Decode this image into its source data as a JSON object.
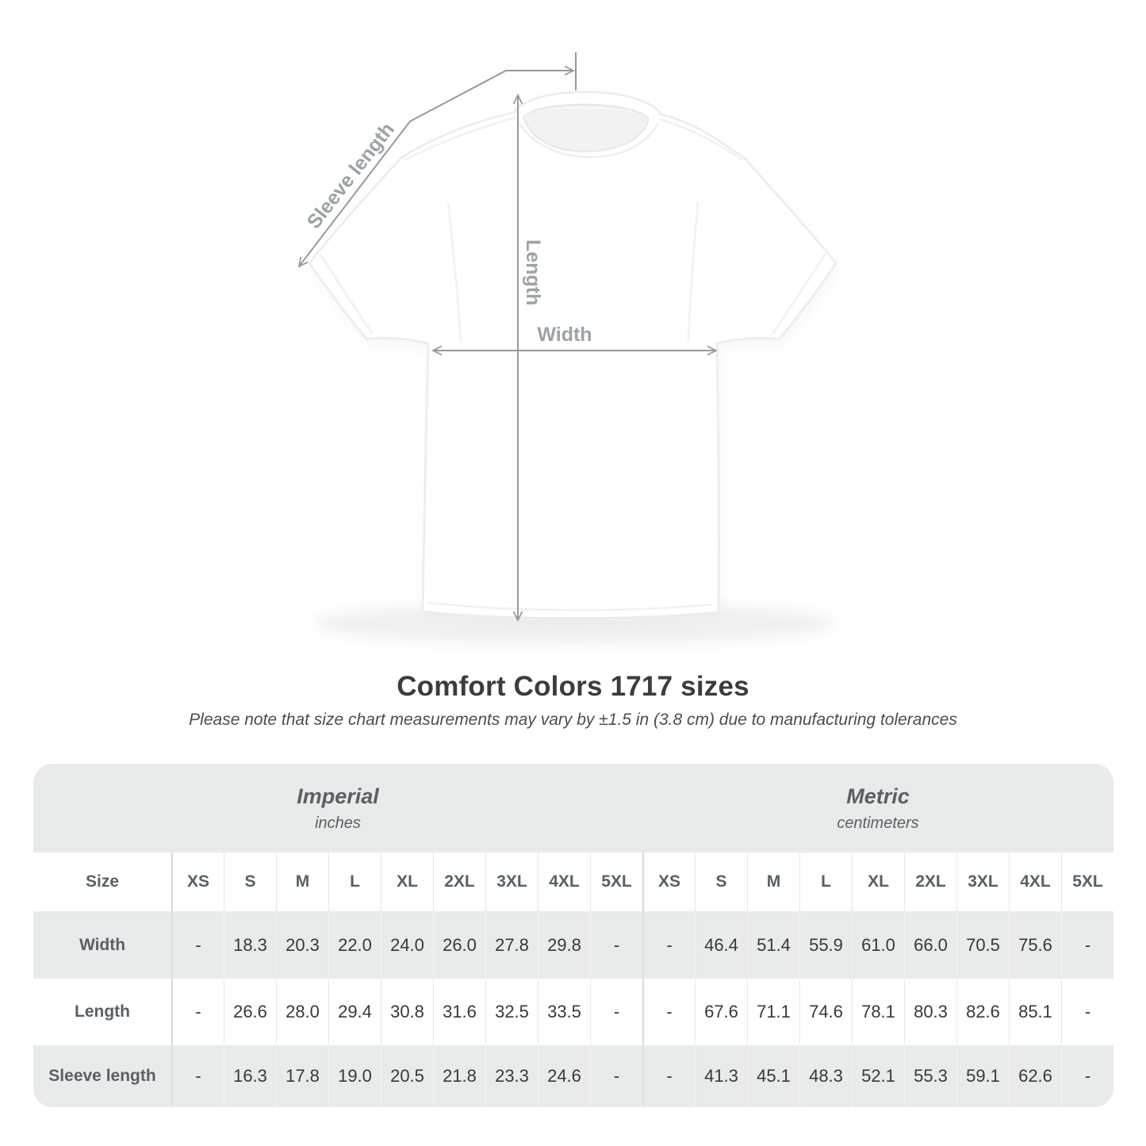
{
  "header": {
    "title": "Comfort Colors 1717 sizes",
    "subtitle": "Please note that size chart measurements may vary by ±1.5 in (3.8 cm) due to manufacturing tolerances"
  },
  "diagram": {
    "sleeve_label": "Sleeve length",
    "length_label": "Length",
    "width_label": "Width"
  },
  "chart_data": {
    "type": "table",
    "title": "Comfort Colors 1717 sizes",
    "size_column_header": "Size",
    "sections": [
      {
        "name": "Imperial",
        "unit": "inches",
        "columns": [
          "XS",
          "S",
          "M",
          "L",
          "XL",
          "2XL",
          "3XL",
          "4XL",
          "5XL"
        ]
      },
      {
        "name": "Metric",
        "unit": "centimeters",
        "columns": [
          "XS",
          "S",
          "M",
          "L",
          "XL",
          "2XL",
          "3XL",
          "4XL",
          "5XL"
        ]
      }
    ],
    "rows": [
      {
        "label": "Width",
        "imperial": [
          "-",
          "18.3",
          "20.3",
          "22.0",
          "24.0",
          "26.0",
          "27.8",
          "29.8",
          "-"
        ],
        "metric": [
          "-",
          "46.4",
          "51.4",
          "55.9",
          "61.0",
          "66.0",
          "70.5",
          "75.6",
          "-"
        ]
      },
      {
        "label": "Length",
        "imperial": [
          "-",
          "26.6",
          "28.0",
          "29.4",
          "30.8",
          "31.6",
          "32.5",
          "33.5",
          "-"
        ],
        "metric": [
          "-",
          "67.6",
          "71.1",
          "74.6",
          "78.1",
          "80.3",
          "82.6",
          "85.1",
          "-"
        ]
      },
      {
        "label": "Sleeve length",
        "imperial": [
          "-",
          "16.3",
          "17.8",
          "19.0",
          "20.5",
          "21.8",
          "23.3",
          "24.6",
          "-"
        ],
        "metric": [
          "-",
          "41.3",
          "45.1",
          "48.3",
          "52.1",
          "55.3",
          "59.1",
          "62.6",
          "-"
        ]
      }
    ]
  },
  "colors": {
    "table_band_gray": "#e9eaea",
    "arrow_gray": "#97999b",
    "diagram_label_gray": "#9da2a5",
    "heading_text": "#3a3c3e",
    "table_header_text": "#596065",
    "table_value_text": "#36393b"
  }
}
